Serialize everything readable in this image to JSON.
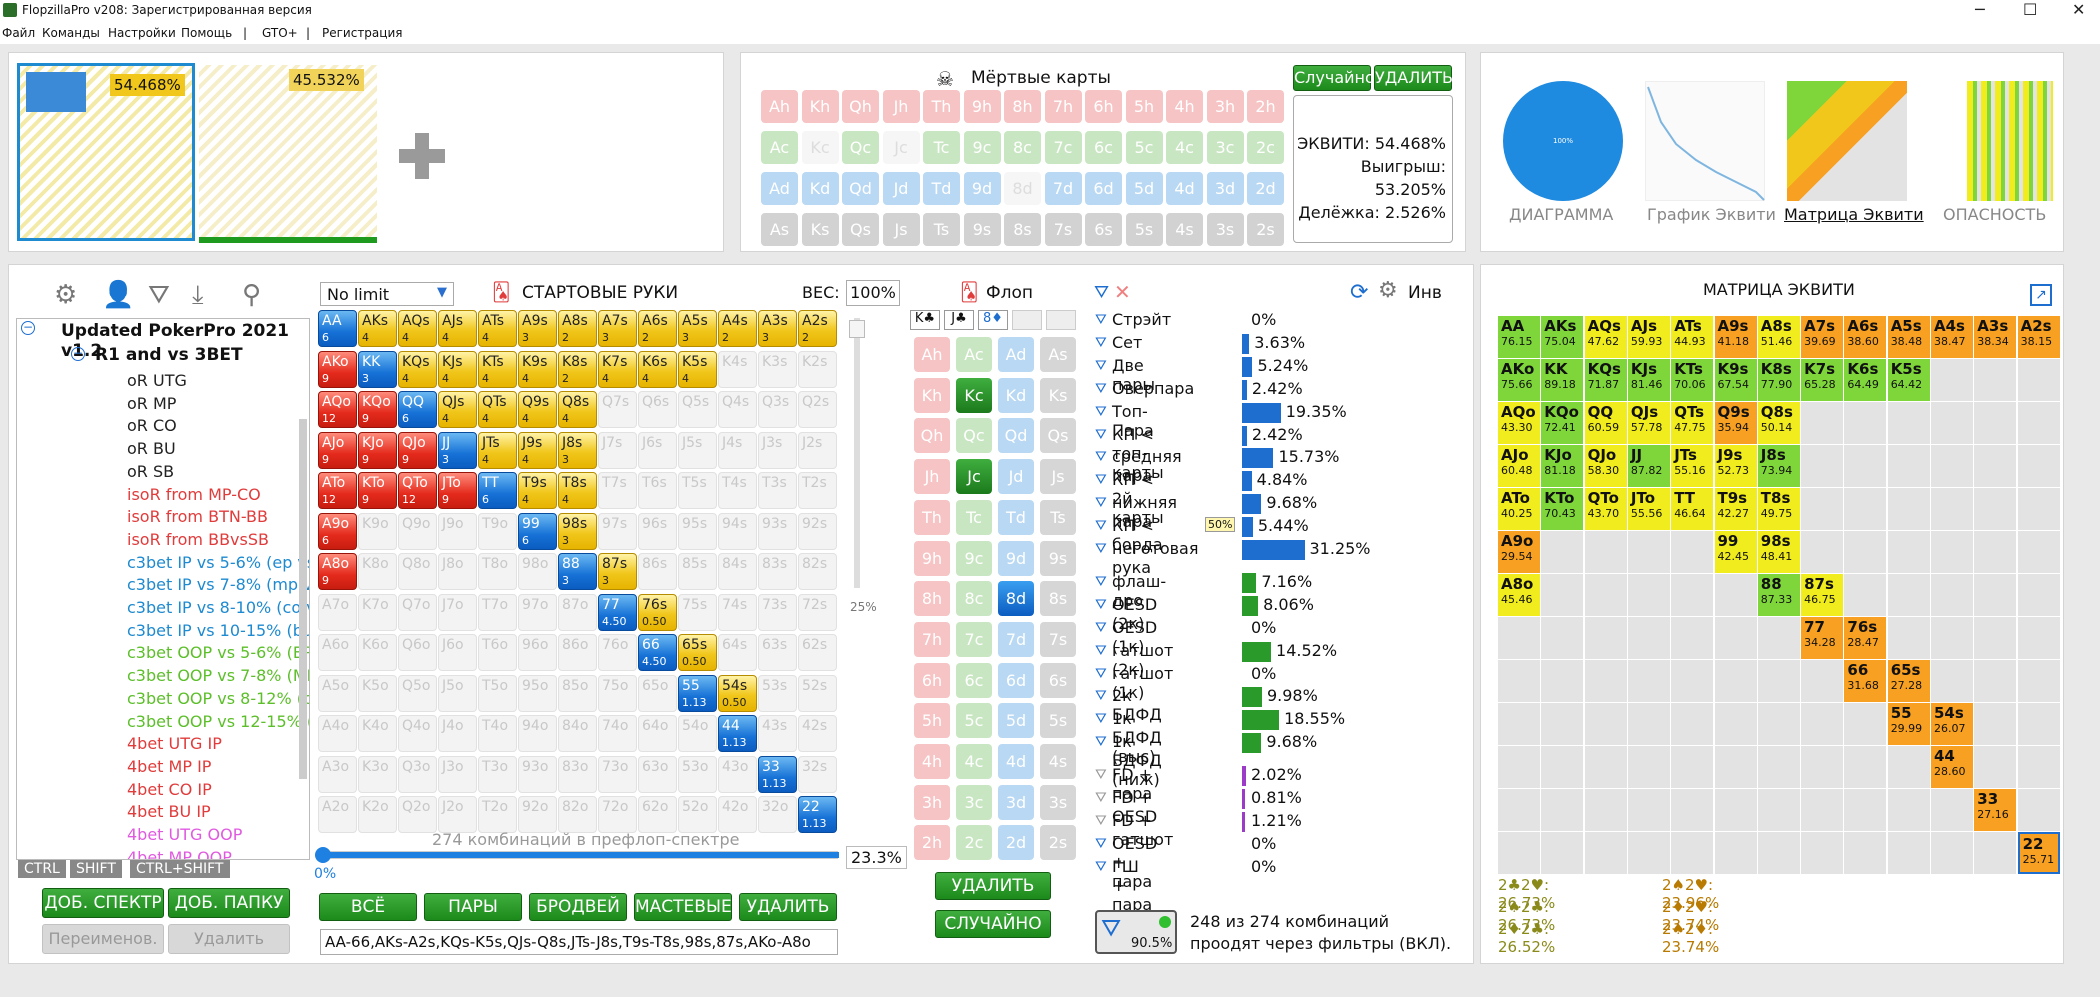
{
  "window": {
    "title": "FlopzillaPro v208: Зарегистрированная версия"
  },
  "menu": [
    "Файл",
    "Команды",
    "Настройки",
    "Помощь",
    "|",
    "GTO+",
    "|",
    "Регистрация"
  ],
  "players": {
    "p1_equity": "54.468%",
    "p2_equity": "45.532%"
  },
  "dead_cards": {
    "title": "Мёртвые карты",
    "random": "Случайно",
    "delete": "УДАЛИТЬ",
    "rows": [
      [
        "Ah",
        "Kh",
        "Qh",
        "Jh",
        "Th",
        "9h",
        "8h",
        "7h",
        "6h",
        "5h",
        "4h",
        "3h",
        "2h"
      ],
      [
        "Ac",
        "Kc",
        "Qc",
        "Jc",
        "Tc",
        "9c",
        "8c",
        "7c",
        "6c",
        "5c",
        "4c",
        "3c",
        "2c"
      ],
      [
        "Ad",
        "Kd",
        "Qd",
        "Jd",
        "Td",
        "9d",
        "8d",
        "7d",
        "6d",
        "5d",
        "4d",
        "3d",
        "2d"
      ],
      [
        "As",
        "Ks",
        "Qs",
        "Js",
        "Ts",
        "9s",
        "8s",
        "7s",
        "6s",
        "5s",
        "4s",
        "3s",
        "2s"
      ]
    ],
    "equity_label": "ЭКВИТИ:",
    "equity": "54.468%",
    "win_label": "Выигрыш:",
    "win": "53.205%",
    "tie_label": "Делёжка:",
    "tie": "2.526%"
  },
  "views": {
    "diagram": "ДИАГРАММА",
    "graph": "График Эквити",
    "matrix": "Матрица Эквити",
    "danger": "ОПАСНОСТЬ",
    "pie_label": "100%"
  },
  "tree": {
    "root": "Updated PokerPro 2021 v1.2",
    "folder": "R1 and vs 3BET",
    "items": [
      [
        "oR UTG",
        "#222"
      ],
      [
        "oR MP",
        "#222"
      ],
      [
        "oR CO",
        "#222"
      ],
      [
        "oR BU",
        "#222"
      ],
      [
        "oR SB",
        "#222"
      ],
      [
        "isoR from MP-CO",
        "#e03c3c"
      ],
      [
        "isoR from BTN-BB",
        "#e03c3c"
      ],
      [
        "isoR from BBvsSB",
        "#e03c3c"
      ],
      [
        "c3bet IP vs 5-6% (ep vs",
        "#1e8ad0"
      ],
      [
        "c3bet IP vs 7-8% (mp vs",
        "#1e8ad0"
      ],
      [
        "c3bet IP vs 8-10% (co vs",
        "#1e8ad0"
      ],
      [
        "c3bet IP vs 10-15% (bu",
        "#1e8ad0"
      ],
      [
        "c3bet OOP vs 5-6% (EP",
        "#5cbf2a"
      ],
      [
        "c3bet OOP vs 7-8% (MP",
        "#5cbf2a"
      ],
      [
        "c3bet OOP vs 8-12% (co",
        "#5cbf2a"
      ],
      [
        "c3bet OOP vs 12-15% (bu",
        "#5cbf2a"
      ],
      [
        "4bet UTG IP",
        "#e03c3c"
      ],
      [
        "4bet MP IP",
        "#e03c3c"
      ],
      [
        "4bet CO IP",
        "#e03c3c"
      ],
      [
        "4bet BU IP",
        "#e03c3c"
      ],
      [
        "4bet UTG OOP",
        "#e05ae0"
      ],
      [
        "4bet MP OOP",
        "#e05ae0"
      ]
    ],
    "keys": [
      "CTRL",
      "SHIFT",
      "CTRL+SHIFT"
    ],
    "add_range": "ДОБ. СПЕКТР",
    "add_folder": "ДОБ. ПАПКУ",
    "rename": "Переименов.",
    "delete": "Удалить"
  },
  "hands": {
    "limit": "No limit",
    "title": "СТАРТОВЫЕ РУКИ",
    "weight_label": "ВЕС:",
    "weight": "100%",
    "slider_pct": "25%",
    "combos_label": "274 комбинаций в префлоп-спектре",
    "pct": "23.3%",
    "zero": "0%",
    "btns": [
      "ВСЁ",
      "ПАРЫ",
      "БРОДВЕЙ",
      "МАСТЕВЫЕ",
      "УДАЛИТЬ"
    ],
    "range_text": "AA-66,AKs-A2s,KQs-K5s,QJs-Q8s,JTs-J8s,T9s-T8s,98s,87s,AKo-A8o"
  },
  "flop": {
    "title": "Флоп",
    "cards": [
      "K♣",
      "J♣",
      "8♦"
    ],
    "delete": "УДАЛИТЬ",
    "random": "СЛУЧАЙНО",
    "grid": [
      [
        "Ah",
        "Ac",
        "Ad",
        "As"
      ],
      [
        "Kh",
        "Kc",
        "Kd",
        "Ks"
      ],
      [
        "Qh",
        "Qc",
        "Qd",
        "Qs"
      ],
      [
        "Jh",
        "Jc",
        "Jd",
        "Js"
      ],
      [
        "Th",
        "Tc",
        "Td",
        "Ts"
      ],
      [
        "9h",
        "9c",
        "9d",
        "9s"
      ],
      [
        "8h",
        "8c",
        "8d",
        "8s"
      ],
      [
        "7h",
        "7c",
        "7d",
        "7s"
      ],
      [
        "6h",
        "6c",
        "6d",
        "6s"
      ],
      [
        "5h",
        "5c",
        "5d",
        "5s"
      ],
      [
        "4h",
        "4c",
        "4d",
        "4s"
      ],
      [
        "3h",
        "3c",
        "3d",
        "3s"
      ],
      [
        "2h",
        "2c",
        "2d",
        "2s"
      ]
    ]
  },
  "stats": {
    "inv": "Инв",
    "badge": "50%",
    "made": [
      [
        "Стрэйт",
        "0%",
        0
      ],
      [
        "Сет",
        "3.63%",
        3.63
      ],
      [
        "Две пары",
        "5.24%",
        5.24
      ],
      [
        "Оверпара",
        "2.42%",
        2.42
      ],
      [
        "Топ-Пара",
        "19.35%",
        19.35
      ],
      [
        "КП < топ-карты",
        "2.42%",
        2.42
      ],
      [
        "средняя пара",
        "15.73%",
        15.73
      ],
      [
        "КП < 2й карты",
        "4.84%",
        4.84
      ],
      [
        "нижняя пара",
        "9.68%",
        9.68
      ],
      [
        "КП < борда",
        "5.44%",
        5.44
      ],
      [
        "неготовая рука",
        "31.25%",
        31.25
      ]
    ],
    "draws": [
      [
        "флаш-дро",
        "7.16%",
        7.16
      ],
      [
        "OESD (2к)",
        "8.06%",
        8.06
      ],
      [
        "OESD (1к)",
        "0%",
        0
      ],
      [
        "гатшот (2к)",
        "14.52%",
        14.52
      ],
      [
        "гатшот (1к)",
        "0%",
        0
      ],
      [
        "2к БДФД",
        "9.98%",
        9.98
      ],
      [
        "1к БДФД (выс)",
        "18.55%",
        18.55
      ],
      [
        "1к БДФД (ниж)",
        "9.68%",
        9.68
      ]
    ],
    "combo": [
      [
        "FD + пара",
        "2.02%",
        2.02
      ],
      [
        "FD + OESD",
        "0.81%",
        0.81
      ],
      [
        "FD + гатшот",
        "1.21%",
        1.21
      ],
      [
        "OESD + пара",
        "0%",
        0
      ],
      [
        "ГШ + пара",
        "0%",
        0
      ]
    ],
    "filter_pct": "90.5%",
    "filter_text1": "248 из 274 комбинаций",
    "filter_text2": "проодят через фильтры (ВКЛ)."
  },
  "matrix": {
    "title": "МАТРИЦА ЭКВИТИ",
    "footer": [
      [
        "2♣2♥: 26.73%",
        "2♠2♥: 23.96%"
      ],
      [
        "2♠2♣: 26.73%",
        "2♦2♥: 23.74%"
      ],
      [
        "2♦2♣: 26.52%",
        "2♠2♦: 23.74%"
      ]
    ]
  }
}
